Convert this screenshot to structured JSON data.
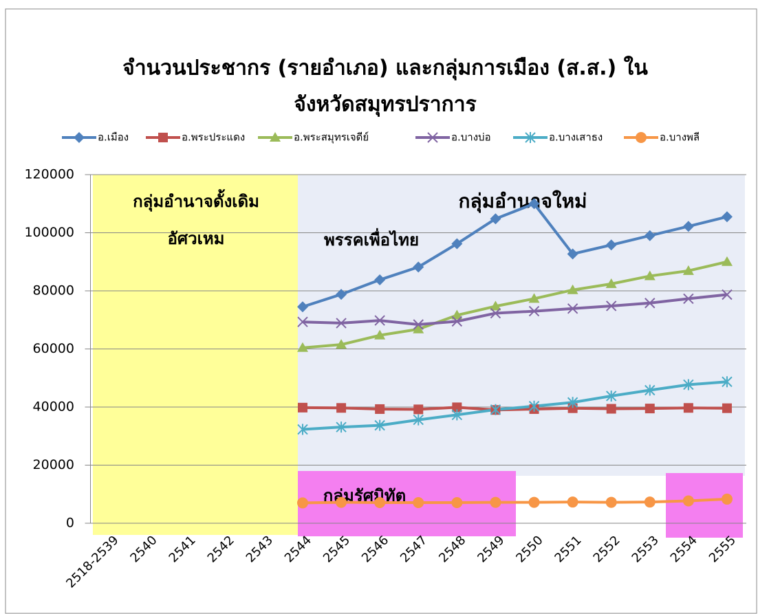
{
  "chart_data": {
    "type": "line",
    "title": [
      "จำนวนประชากร (รายอำเภอ) และกลุ่มการเมือง (ส.ส.) ใน",
      "จังหวัดสมุทรปราการ"
    ],
    "categories": [
      "2518-2539",
      "2540",
      "2541",
      "2542",
      "2543",
      "2544",
      "2545",
      "2546",
      "2547",
      "2548",
      "2549",
      "2550",
      "2551",
      "2552",
      "2553",
      "2554",
      "2555"
    ],
    "series": [
      {
        "name": "อ.เมือง",
        "color": "#4f81bd",
        "marker": "diamond",
        "values": [
          null,
          null,
          null,
          null,
          null,
          74500,
          78800,
          83800,
          88200,
          96200,
          104800,
          110000,
          92700,
          95800,
          99000,
          102200,
          105500
        ]
      },
      {
        "name": "อ.พระประแดง",
        "color": "#c0504d",
        "marker": "square",
        "values": [
          null,
          null,
          null,
          null,
          null,
          39800,
          39700,
          39300,
          39200,
          39900,
          39000,
          39300,
          39600,
          39400,
          39500,
          39700,
          39600
        ]
      },
      {
        "name": "อ.พระสมุทรเจดีย์",
        "color": "#9bbb59",
        "marker": "triangle",
        "values": [
          null,
          null,
          null,
          null,
          null,
          60400,
          61500,
          64700,
          66800,
          71600,
          74700,
          77300,
          80300,
          82400,
          85100,
          86900,
          90000
        ]
      },
      {
        "name": "อ.บางบ่อ",
        "color": "#8064a2",
        "marker": "x",
        "values": [
          null,
          null,
          null,
          null,
          null,
          69300,
          68900,
          69800,
          68400,
          69500,
          72300,
          73000,
          73900,
          74800,
          75800,
          77300,
          78700
        ]
      },
      {
        "name": "อ.บางเสาธง",
        "color": "#4bacc6",
        "marker": "star",
        "values": [
          null,
          null,
          null,
          null,
          null,
          32300,
          33100,
          33700,
          35600,
          37300,
          39100,
          40300,
          41600,
          43800,
          45800,
          47700,
          48700
        ]
      },
      {
        "name": "อ.บางพลี",
        "color": "#f79646",
        "marker": "circle",
        "values": [
          null,
          null,
          null,
          null,
          null,
          7000,
          7200,
          7100,
          7100,
          7100,
          7200,
          7200,
          7300,
          7200,
          7300,
          7700,
          8300
        ]
      }
    ],
    "annotations": [
      "กลุ่มอำนาจดั้งเดิม",
      "อัศวเหม",
      "กลุ่มอำนาจใหม่",
      "พรรคเพื่อไทย",
      "กลุ่มรัศมิทัต"
    ],
    "ylim": [
      0,
      120000
    ],
    "yticks": [
      0,
      20000,
      40000,
      60000,
      80000,
      100000,
      120000
    ],
    "grid": true,
    "legend": "top"
  }
}
